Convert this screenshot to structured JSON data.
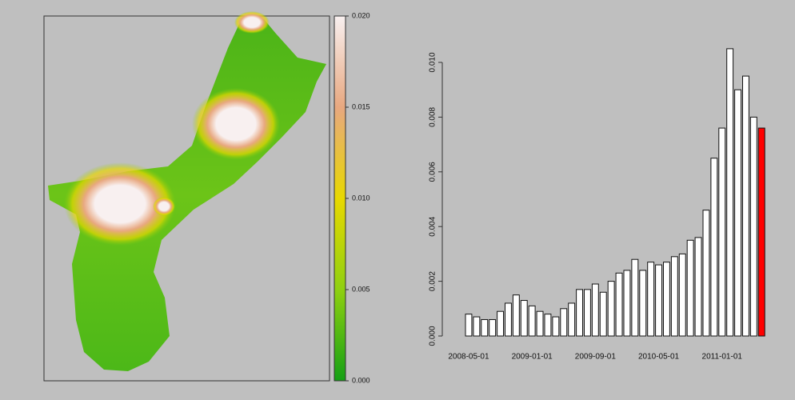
{
  "chart_data": [
    {
      "type": "map",
      "colorbar": {
        "lim": [
          0,
          0.02
        ],
        "ticks": [
          {
            "value": 0,
            "label": "0.000"
          },
          {
            "value": 0.005,
            "label": "0.005"
          },
          {
            "value": 0.01,
            "label": "0.010"
          },
          {
            "value": 0.015,
            "label": "0.015"
          },
          {
            "value": 0.02,
            "label": "0.020"
          }
        ],
        "colors": [
          "#14a014",
          "#8fd010",
          "#e8d800",
          "#e8a880",
          "#f8f0f0"
        ]
      }
    },
    {
      "type": "bar",
      "categories": [
        "2008-05-01",
        null,
        null,
        null,
        null,
        null,
        null,
        null,
        "2009-01-01",
        null,
        null,
        null,
        null,
        null,
        null,
        null,
        "2009-09-01",
        null,
        null,
        null,
        null,
        null,
        null,
        null,
        "2010-05-01",
        null,
        null,
        null,
        null,
        null,
        null,
        null,
        "2011-01-01",
        null,
        null,
        null,
        null,
        null
      ],
      "values": [
        0.0008,
        0.0007,
        0.0006,
        0.0006,
        0.0009,
        0.0012,
        0.0015,
        0.0013,
        0.0011,
        0.0009,
        0.0008,
        0.0007,
        0.001,
        0.0012,
        0.0017,
        0.0017,
        0.0019,
        0.0016,
        0.002,
        0.0023,
        0.0024,
        0.0028,
        0.0024,
        0.0027,
        0.0026,
        0.0027,
        0.0029,
        0.003,
        0.0035,
        0.0036,
        0.0046,
        0.0065,
        0.0076,
        0.0105,
        0.009,
        0.0095,
        0.008,
        0.0076
      ],
      "colors": [
        "#ffffff",
        "#ffffff",
        "#ffffff",
        "#ffffff",
        "#ffffff",
        "#ffffff",
        "#ffffff",
        "#ffffff",
        "#ffffff",
        "#ffffff",
        "#ffffff",
        "#ffffff",
        "#ffffff",
        "#ffffff",
        "#ffffff",
        "#ffffff",
        "#ffffff",
        "#ffffff",
        "#ffffff",
        "#ffffff",
        "#ffffff",
        "#ffffff",
        "#ffffff",
        "#ffffff",
        "#ffffff",
        "#ffffff",
        "#ffffff",
        "#ffffff",
        "#ffffff",
        "#ffffff",
        "#ffffff",
        "#ffffff",
        "#ffffff",
        "#ffffff",
        "#ffffff",
        "#ffffff",
        "#ffffff",
        "#ff0000"
      ],
      "ylim": [
        0,
        0.01
      ],
      "yticks": [
        {
          "value": 0,
          "label": "0.000"
        },
        {
          "value": 0.002,
          "label": "0.002"
        },
        {
          "value": 0.004,
          "label": "0.004"
        },
        {
          "value": 0.006,
          "label": "0.006"
        },
        {
          "value": 0.008,
          "label": "0.008"
        },
        {
          "value": 0.01,
          "label": "0.010"
        }
      ]
    }
  ]
}
